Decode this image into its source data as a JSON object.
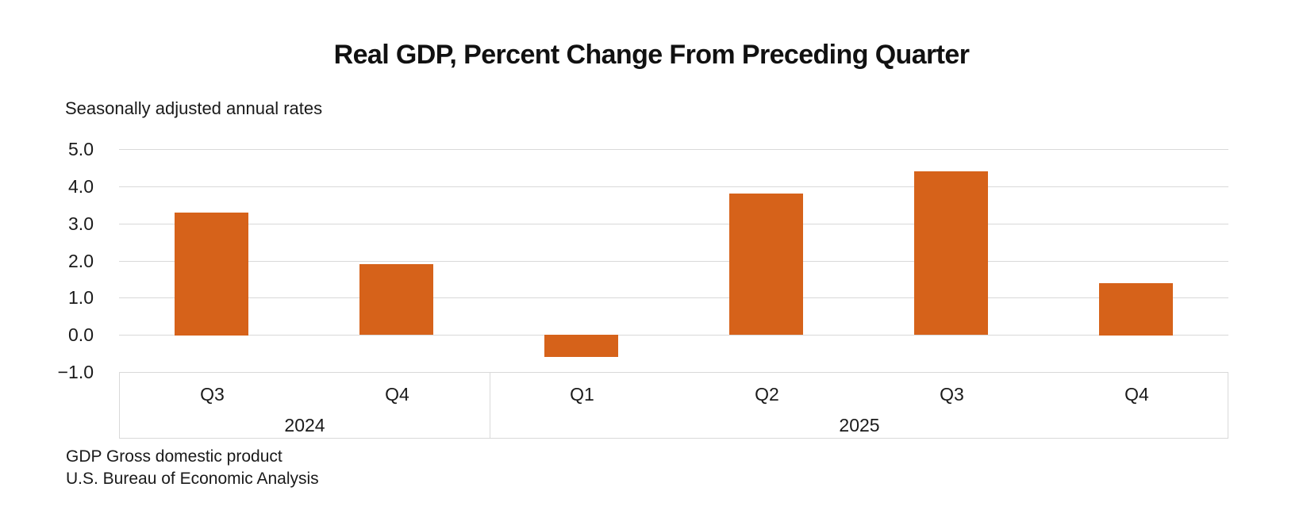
{
  "chart_data": {
    "type": "bar",
    "title": "Real GDP, Percent Change From Preceding Quarter",
    "subtitle": "Seasonally adjusted annual rates",
    "categories": [
      "Q3",
      "Q4",
      "Q1",
      "Q2",
      "Q3",
      "Q4"
    ],
    "year_groups": [
      {
        "label": "2024",
        "span": 2
      },
      {
        "label": "2025",
        "span": 4
      }
    ],
    "values": [
      3.3,
      1.9,
      -0.6,
      3.8,
      4.4,
      1.4
    ],
    "ylim": [
      -1.0,
      5.0
    ],
    "yticks": [
      {
        "label": "5.0",
        "value": 5
      },
      {
        "label": "4.0",
        "value": 4
      },
      {
        "label": "3.0",
        "value": 3
      },
      {
        "label": "2.0",
        "value": 2
      },
      {
        "label": "1.0",
        "value": 1
      },
      {
        "label": "0.0",
        "value": 0
      },
      {
        "label": "−1.0",
        "value": -1
      }
    ],
    "bar_color": "#D6621A",
    "gridline_color": "#D9D9D9",
    "grid": true,
    "legend": "none",
    "footnotes": [
      "GDP Gross domestic product",
      "U.S. Bureau of Economic Analysis"
    ]
  }
}
